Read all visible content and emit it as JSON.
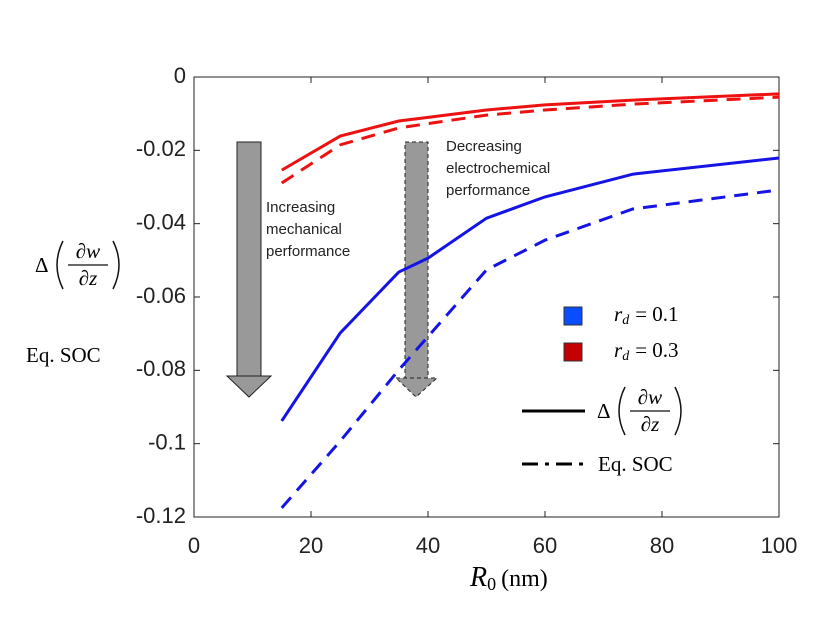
{
  "chart_data": {
    "type": "line",
    "x_label": {
      "symbol": "R",
      "subscript": "0",
      "unit": "(nm)"
    },
    "y_label": {
      "operator": "Δ",
      "numerator": "∂w",
      "denominator": "∂z"
    },
    "y_label_2": "Eq. SOC",
    "x": [
      15,
      25,
      35,
      40,
      50,
      60,
      75,
      100
    ],
    "series": [
      {
        "color": "#1414e6",
        "dash": "solid",
        "values": [
          -0.0938,
          -0.0698,
          -0.0532,
          -0.0494,
          -0.0385,
          -0.0327,
          -0.0265,
          -0.0221
        ]
      },
      {
        "color": "#1414e6",
        "dash": "dashed",
        "values": [
          -0.1175,
          -0.0993,
          -0.0799,
          -0.0708,
          -0.0526,
          -0.0445,
          -0.036,
          -0.0308
        ]
      },
      {
        "color": "#ee1111",
        "dash": "solid",
        "values": [
          -0.0254,
          -0.0161,
          -0.012,
          -0.011,
          -0.009,
          -0.0076,
          -0.0063,
          -0.0046
        ]
      },
      {
        "color": "#ee1111",
        "dash": "dashed",
        "values": [
          -0.0289,
          -0.0185,
          -0.0139,
          -0.0127,
          -0.0104,
          -0.009,
          -0.0074,
          -0.0055
        ]
      }
    ],
    "legend_colors": [
      {
        "symbol": "r",
        "subscript": "d",
        "text": "= 0.1",
        "color": "#0a4cff"
      },
      {
        "symbol": "r",
        "subscript": "d",
        "text": "= 0.3",
        "color": "#c40000"
      }
    ],
    "legend_styles": [
      {
        "operator": "Δ",
        "numerator": "∂w",
        "denominator": "∂z",
        "dash": "solid"
      },
      {
        "text": "Eq. SOC",
        "dash": "dashdot"
      }
    ],
    "annotations": [
      {
        "lines": [
          "Increasing",
          "mechanical",
          "performance"
        ]
      },
      {
        "lines": [
          "Decreasing",
          "electrochemical",
          "performance"
        ]
      }
    ],
    "xlim": [
      0,
      100
    ],
    "ylim": [
      -0.12,
      0
    ],
    "xticks": [
      0,
      20,
      40,
      60,
      80,
      100
    ],
    "yticks": [
      0,
      -0.02,
      -0.04,
      -0.06,
      -0.08,
      -0.1,
      -0.12
    ]
  }
}
